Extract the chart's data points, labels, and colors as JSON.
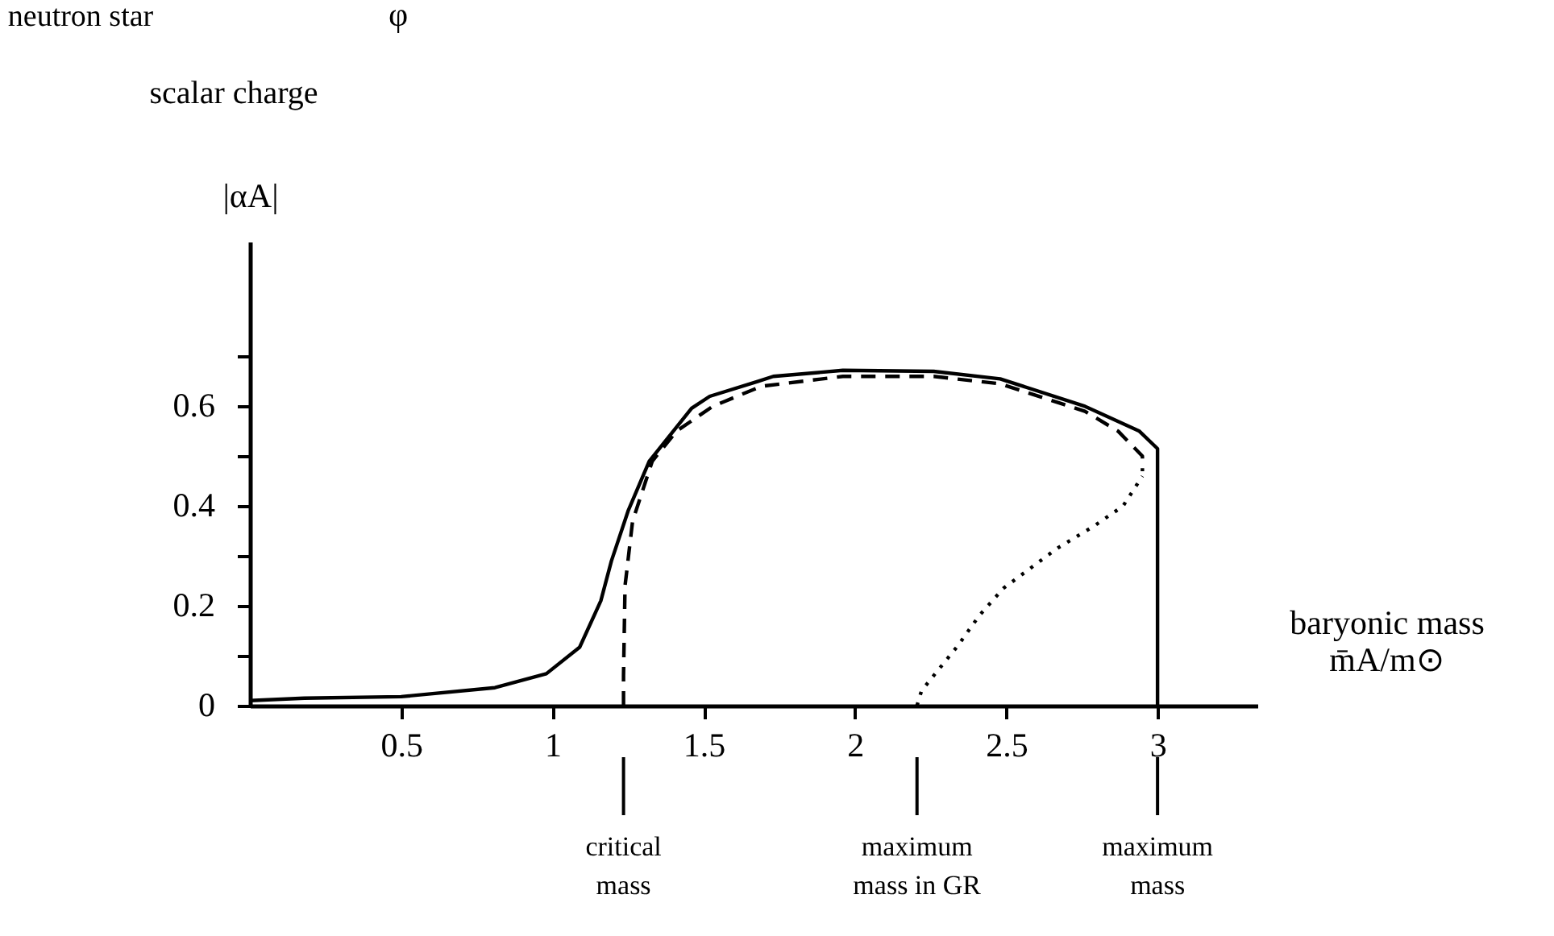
{
  "chart_data": {
    "type": "line",
    "xlabel": "baryonic mass\nm̄A/m⊙",
    "ylabel": "|αA|",
    "xlim": [
      0,
      3.33
    ],
    "ylim": [
      0,
      0.93
    ],
    "xticks": [
      0.5,
      1,
      1.5,
      2,
      2.5,
      3
    ],
    "yticks": [
      0,
      {
        "value": 0.1,
        "label": null
      },
      0.2,
      {
        "value": 0.3,
        "label": null
      },
      0.4,
      {
        "value": 0.5,
        "label": null
      },
      0.6,
      {
        "value": 0.7,
        "label": null
      }
    ],
    "grid": false,
    "marker": "none",
    "series": [
      {
        "color": "#000000",
        "line_style": "solid",
        "x": [
          0,
          0.18,
          0.5,
          0.81,
          0.98,
          1.09,
          1.16,
          1.195,
          1.25,
          1.32,
          1.46,
          1.52,
          1.68,
          1.73,
          1.96,
          2.26,
          2.48,
          2.76,
          2.94,
          3.0,
          3.0
        ],
        "values": [
          0.01,
          0.015,
          0.018,
          0.036,
          0.064,
          0.117,
          0.21,
          0.29,
          0.39,
          0.49,
          0.596,
          0.62,
          0.65,
          0.66,
          0.672,
          0.67,
          0.655,
          0.6,
          0.55,
          0.515,
          0
        ]
      },
      {
        "color": "#000000",
        "line_style": "dashed",
        "x": [
          1.235,
          1.235,
          1.24,
          1.265,
          1.33,
          1.41,
          1.53,
          1.57,
          1.69,
          1.96,
          2.26,
          2.48,
          2.76,
          2.87,
          2.95,
          2.95
        ],
        "values": [
          0,
          0.06,
          0.24,
          0.37,
          0.49,
          0.55,
          0.6,
          0.61,
          0.64,
          0.66,
          0.66,
          0.645,
          0.59,
          0.55,
          0.5,
          0.47
        ]
      },
      {
        "color": "#000000",
        "line_style": "dotted",
        "x": [
          2.205,
          2.22,
          2.34,
          2.41,
          2.49,
          2.67,
          2.79,
          2.886,
          2.95
        ],
        "values": [
          0,
          0.03,
          0.12,
          0.18,
          0.235,
          0.316,
          0.36,
          0.4,
          0.46
        ]
      }
    ],
    "ref_lines": [
      {
        "axis": "x",
        "value": 1.235,
        "label": "critical\nmass"
      },
      {
        "axis": "x",
        "value": 2.205,
        "label": "maximum\nmass in GR"
      },
      {
        "axis": "x",
        "value": 3.0,
        "label": "maximum\nmass"
      }
    ],
    "annotations": [
      "neutron star",
      "φ",
      "scalar charge"
    ]
  }
}
